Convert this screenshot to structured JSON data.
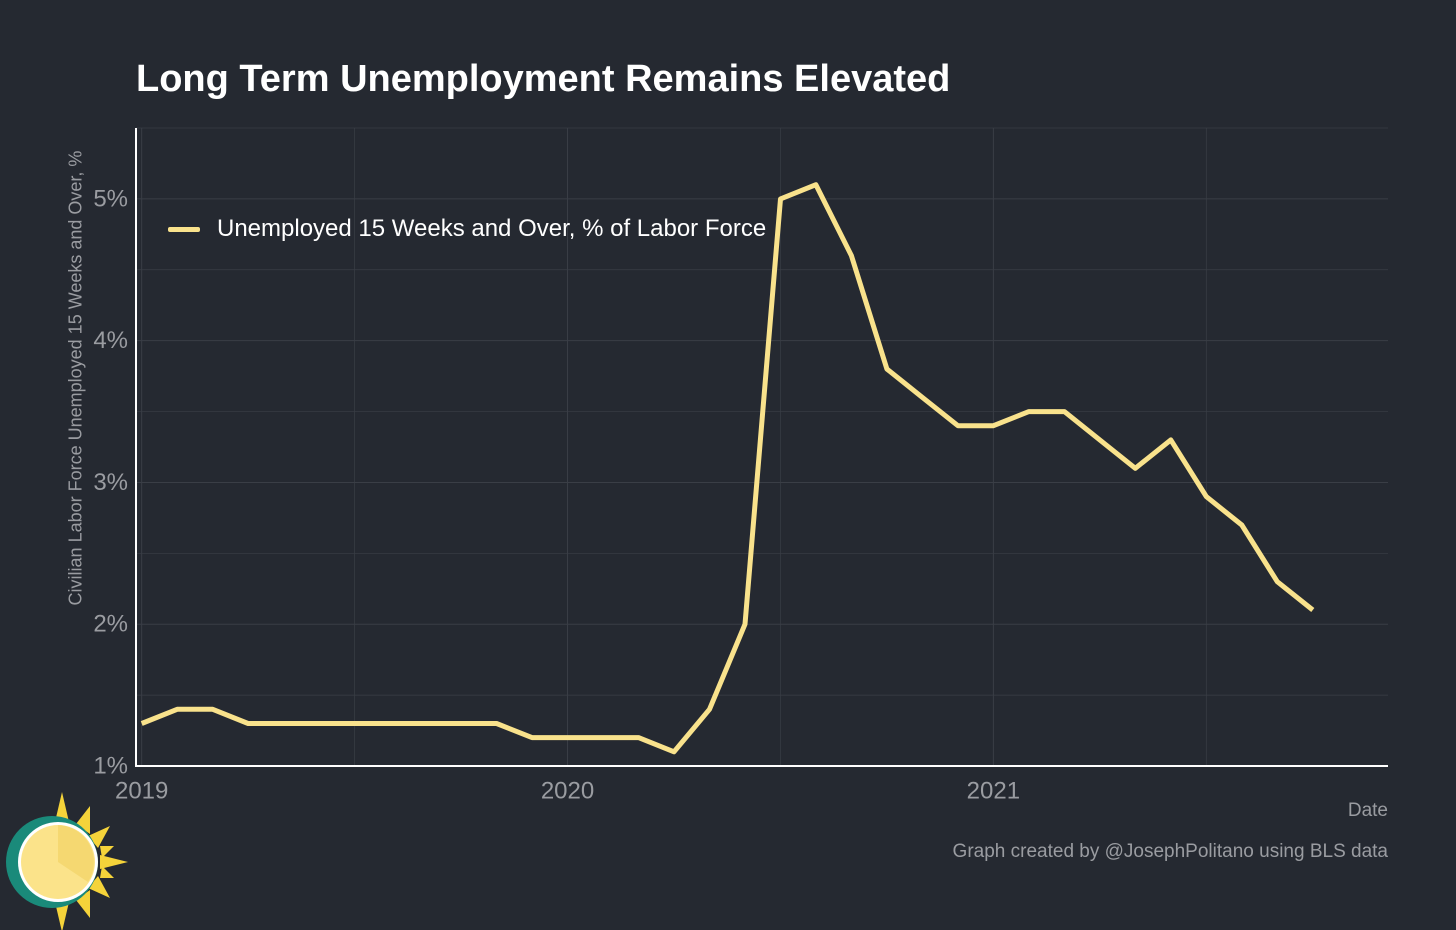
{
  "chart_data": {
    "type": "line",
    "title": "Long Term Unemployment Remains Elevated",
    "xlabel": "Date",
    "ylabel": "Civilian Labor Force Unemployed 15 Weeks and Over, %",
    "credit": "Graph created by @JosephPolitano using BLS data",
    "ylim": [
      1,
      5.5
    ],
    "yticks": [
      1,
      2,
      3,
      4,
      5
    ],
    "ytick_labels": [
      "1%",
      "2%",
      "3%",
      "4%",
      "5%"
    ],
    "xticks": [
      "2019-01",
      "2020-01",
      "2021-01"
    ],
    "xtick_labels": [
      "2019",
      "2020",
      "2021"
    ],
    "x_range": [
      "2018-12",
      "2021-12"
    ],
    "grid": true,
    "legend_position": "top-left",
    "series": [
      {
        "name": "Unemployed 15 Weeks and Over, % of Labor Force",
        "color": "#f9e28c",
        "x": [
          "2019-01",
          "2019-02",
          "2019-03",
          "2019-04",
          "2019-05",
          "2019-06",
          "2019-07",
          "2019-08",
          "2019-09",
          "2019-10",
          "2019-11",
          "2019-12",
          "2020-01",
          "2020-02",
          "2020-03",
          "2020-04",
          "2020-05",
          "2020-06",
          "2020-07",
          "2020-08",
          "2020-09",
          "2020-10",
          "2020-11",
          "2020-12",
          "2021-01",
          "2021-02",
          "2021-03",
          "2021-04",
          "2021-05",
          "2021-06",
          "2021-07",
          "2021-08",
          "2021-09",
          "2021-10"
        ],
        "values": [
          1.3,
          1.4,
          1.4,
          1.3,
          1.3,
          1.3,
          1.3,
          1.3,
          1.3,
          1.3,
          1.3,
          1.2,
          1.2,
          1.2,
          1.2,
          1.1,
          1.4,
          2.0,
          5.0,
          5.1,
          4.6,
          3.8,
          3.6,
          3.4,
          3.4,
          3.5,
          3.5,
          3.3,
          3.1,
          3.3,
          2.9,
          2.7,
          2.3,
          2.1
        ]
      }
    ]
  },
  "colors": {
    "background": "#252931",
    "grid": "#3a3e46",
    "axis": "#ffffff",
    "text_muted": "#9a9ca1",
    "line": "#f9e28c"
  },
  "logo": {
    "icon": "sun-icon"
  }
}
